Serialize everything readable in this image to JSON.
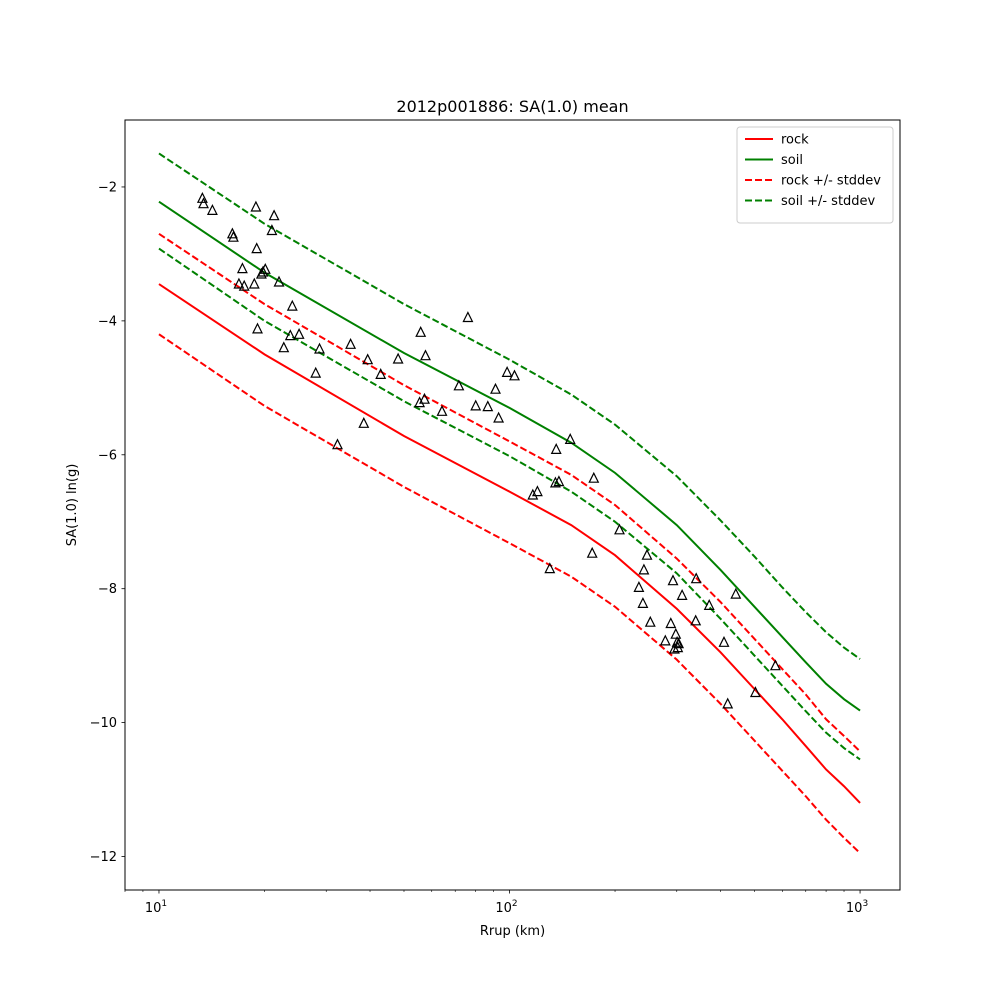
{
  "chart_data": {
    "type": "scatter",
    "title": "2012p001886: SA(1.0) mean",
    "xlabel": "Rrup (km)",
    "ylabel": "SA(1.0) ln(g)",
    "xscale": "log",
    "xlim": [
      8.0,
      1300.0
    ],
    "ylim": [
      -12.5,
      -1.0
    ],
    "grid": false,
    "legend_position": "top-right",
    "x_ticks": [
      {
        "value": 10,
        "base": "10",
        "exp": "1"
      },
      {
        "value": 100,
        "base": "10",
        "exp": "2"
      },
      {
        "value": 1000,
        "base": "10",
        "exp": "3"
      }
    ],
    "y_ticks": [
      {
        "value": -12,
        "label": "−12"
      },
      {
        "value": -10,
        "label": "−10"
      },
      {
        "value": -8,
        "label": "−8"
      },
      {
        "value": -6,
        "label": "−6"
      },
      {
        "value": -4,
        "label": "−4"
      },
      {
        "value": -2,
        "label": "−2"
      }
    ],
    "series": [
      {
        "name": "rock",
        "color": "#ff0000",
        "dash": false,
        "x": [
          10,
          20,
          50,
          100,
          150,
          200,
          300,
          400,
          500,
          600,
          700,
          800,
          900,
          1000
        ],
        "y": [
          -3.45,
          -4.5,
          -5.72,
          -6.55,
          -7.05,
          -7.5,
          -8.3,
          -8.95,
          -9.5,
          -9.95,
          -10.35,
          -10.7,
          -10.95,
          -11.2
        ]
      },
      {
        "name": "soil",
        "color": "#008000",
        "dash": false,
        "x": [
          10,
          20,
          50,
          100,
          150,
          200,
          300,
          400,
          500,
          600,
          700,
          800,
          900,
          1000
        ],
        "y": [
          -2.22,
          -3.28,
          -4.48,
          -5.3,
          -5.82,
          -6.27,
          -7.05,
          -7.72,
          -8.27,
          -8.72,
          -9.1,
          -9.42,
          -9.65,
          -9.82
        ]
      },
      {
        "name": "rock +/- stddev",
        "color": "#ff0000",
        "dash": true,
        "x": [
          10,
          20,
          50,
          100,
          150,
          200,
          300,
          400,
          500,
          600,
          700,
          800,
          900,
          1000
        ],
        "y": [
          -2.7,
          -3.75,
          -4.96,
          -5.8,
          -6.3,
          -6.75,
          -7.55,
          -8.2,
          -8.75,
          -9.2,
          -9.58,
          -9.95,
          -10.2,
          -10.43
        ]
      },
      {
        "name": "",
        "color": "#ff0000",
        "dash": true,
        "x": [
          10,
          20,
          50,
          100,
          150,
          200,
          300,
          400,
          500,
          600,
          700,
          800,
          900,
          1000
        ],
        "y": [
          -4.2,
          -5.27,
          -6.48,
          -7.32,
          -7.82,
          -8.27,
          -9.06,
          -9.72,
          -10.27,
          -10.72,
          -11.1,
          -11.45,
          -11.72,
          -11.95
        ]
      },
      {
        "name": "soil +/- stddev",
        "color": "#008000",
        "dash": true,
        "x": [
          10,
          20,
          50,
          100,
          150,
          200,
          300,
          400,
          500,
          600,
          700,
          800,
          900,
          1000
        ],
        "y": [
          -1.5,
          -2.55,
          -3.75,
          -4.58,
          -5.1,
          -5.55,
          -6.32,
          -6.98,
          -7.52,
          -7.98,
          -8.35,
          -8.65,
          -8.88,
          -9.05
        ]
      },
      {
        "name": "",
        "color": "#008000",
        "dash": true,
        "x": [
          10,
          20,
          50,
          100,
          150,
          200,
          300,
          400,
          500,
          600,
          700,
          800,
          900,
          1000
        ],
        "y": [
          -2.92,
          -4.0,
          -5.2,
          -6.02,
          -6.55,
          -7.0,
          -7.77,
          -8.45,
          -9.0,
          -9.45,
          -9.83,
          -10.15,
          -10.38,
          -10.55
        ]
      }
    ],
    "observations": {
      "marker": "triangle",
      "x": [
        13.3,
        13.4,
        14.2,
        16.2,
        16.3,
        16.9,
        17.3,
        17.5,
        18.7,
        18.9,
        19.0,
        19.1,
        19.6,
        19.8,
        20.1,
        21.0,
        21.3,
        22.0,
        22.7,
        23.7,
        24.0,
        25.1,
        28.0,
        28.7,
        32.3,
        35.2,
        38.4,
        39.4,
        42.9,
        48.1,
        55.4,
        55.8,
        57.2,
        57.6,
        64.2,
        71.7,
        76.1,
        80.1,
        86.7,
        91.2,
        93.1,
        98.4,
        103.3,
        116.5,
        120.1,
        130.3,
        135.2,
        135.9,
        138.3,
        149.0,
        172.1,
        174.0,
        206.0,
        233.9,
        240.1,
        241.8,
        246.8,
        252.2,
        278.3,
        288.5,
        292.6,
        295.3,
        298.1,
        300.6,
        302.1,
        303.6,
        310.6,
        339.8,
        340.9,
        371.3,
        409.2,
        419.1,
        442.0,
        502.9,
        573.3
      ],
      "y": [
        -2.17,
        -2.25,
        -2.35,
        -2.7,
        -2.75,
        -3.45,
        -3.22,
        -3.48,
        -3.45,
        -2.3,
        -2.92,
        -4.12,
        -3.3,
        -3.27,
        -3.23,
        -2.65,
        -2.43,
        -3.42,
        -4.4,
        -4.22,
        -3.78,
        -4.2,
        -4.78,
        -4.42,
        -5.85,
        -4.35,
        -5.53,
        -4.58,
        -4.8,
        -4.57,
        -5.22,
        -4.17,
        -5.17,
        -4.52,
        -5.35,
        -4.97,
        -3.95,
        -5.27,
        -5.28,
        -5.02,
        -5.45,
        -4.77,
        -4.82,
        -6.6,
        -6.55,
        -7.7,
        -6.42,
        -5.92,
        -6.4,
        -5.77,
        -7.47,
        -6.35,
        -7.12,
        -7.98,
        -8.22,
        -7.72,
        -7.5,
        -8.5,
        -8.78,
        -8.52,
        -7.88,
        -8.9,
        -8.68,
        -8.8,
        -8.88,
        -8.82,
        -8.1,
        -8.48,
        -7.85,
        -8.25,
        -8.8,
        -9.72,
        -8.08,
        -9.55,
        -9.15
      ]
    }
  }
}
